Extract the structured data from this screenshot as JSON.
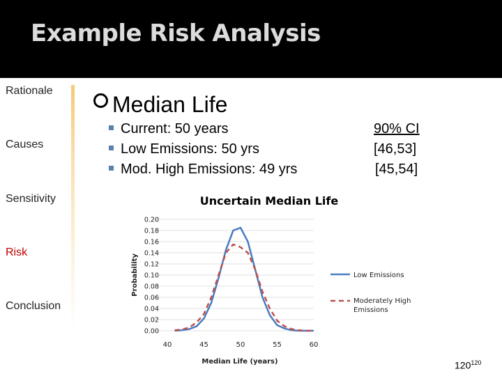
{
  "title": "Example Risk Analysis",
  "nav": [
    "Rationale",
    "Causes",
    "Sensitivity",
    "Risk",
    "Conclusion"
  ],
  "heading": "Median Life",
  "bullets": [
    "Current: 50 years",
    "Low Emissions: 50 yrs",
    "Mod. High Emissions: 49 yrs"
  ],
  "ci": {
    "header": "90% CI",
    "values": [
      "[46,53]",
      "[45,54]"
    ]
  },
  "page_number": "120",
  "page_number_sup": "120",
  "colors": {
    "low": "#4a7cc0",
    "high": "#c0504d",
    "accent_text": "#c00000"
  },
  "chart_data": {
    "type": "line",
    "title": "Uncertain Median Life",
    "xlabel": "Median Life (years)",
    "ylabel": "Probability",
    "xlim": [
      40,
      60
    ],
    "ylim": [
      0,
      0.2
    ],
    "x_ticks": [
      "40",
      "45",
      "50",
      "55",
      "60"
    ],
    "y_ticks": [
      "0.00",
      "0.02",
      "0.04",
      "0.06",
      "0.08",
      "0.10",
      "0.12",
      "0.14",
      "0.16",
      "0.18",
      "0.20"
    ],
    "series": [
      {
        "name": "Low Emissions",
        "style": "solid",
        "x": [
          41,
          42,
          43,
          44,
          45,
          46,
          47,
          48,
          49,
          50,
          51,
          52,
          53,
          54,
          55,
          56,
          57,
          58,
          59,
          60
        ],
        "y": [
          0.0,
          0.001,
          0.003,
          0.008,
          0.022,
          0.05,
          0.095,
          0.145,
          0.18,
          0.185,
          0.16,
          0.11,
          0.06,
          0.028,
          0.01,
          0.004,
          0.001,
          0.0,
          0.0,
          0.0
        ]
      },
      {
        "name": "Moderately High Emissions",
        "style": "dashed",
        "x": [
          41,
          42,
          43,
          44,
          45,
          46,
          47,
          48,
          49,
          50,
          51,
          52,
          53,
          54,
          55,
          56,
          57,
          58,
          59,
          60
        ],
        "y": [
          0.001,
          0.002,
          0.006,
          0.015,
          0.03,
          0.06,
          0.1,
          0.14,
          0.155,
          0.15,
          0.14,
          0.11,
          0.07,
          0.04,
          0.018,
          0.008,
          0.003,
          0.001,
          0.0,
          0.0
        ]
      }
    ],
    "legend": "right"
  }
}
